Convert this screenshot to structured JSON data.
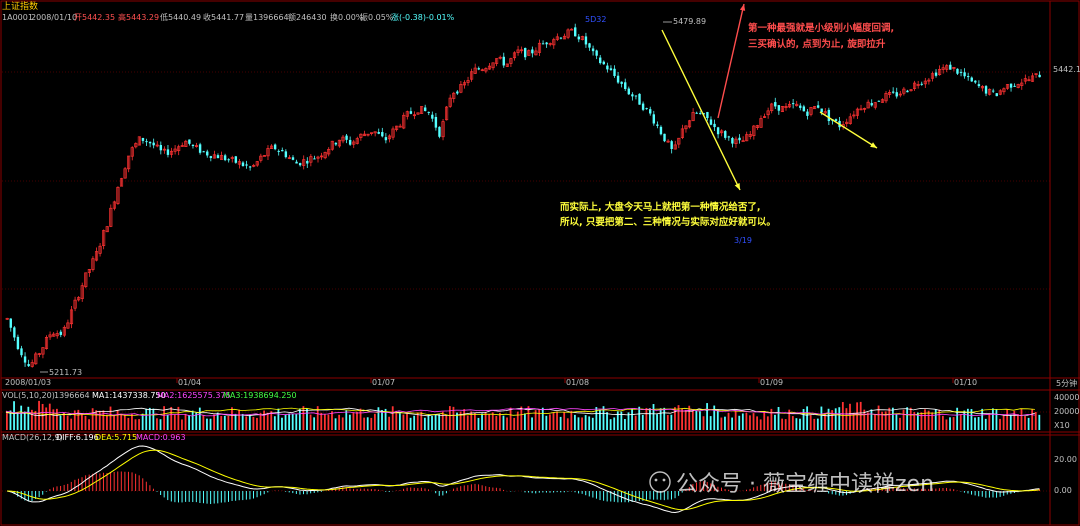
{
  "header": {
    "title": "上证指数",
    "code": "1A0001",
    "date": "2008/01/10",
    "open": "开5442.35",
    "high": "高5443.29",
    "low": "低5440.49",
    "close": "收5441.77",
    "volume": "量1396664",
    "amount": "额246430",
    "turnover": "换0.00%",
    "amplitude": "振0.05%",
    "change": "涨(-0.38)-0.01%"
  },
  "price_labels": {
    "peak": "5479.89",
    "trough": "5211.73",
    "last": "5442.1",
    "peak_marker": "5D32",
    "trough_marker": "3/19"
  },
  "time_axis": {
    "ticks": [
      "2008/01/03",
      "01/04",
      "01/07",
      "01/08",
      "01/09",
      "01/10"
    ],
    "period": "5分钟"
  },
  "volume_panel": {
    "label": "VOL(5,10,20)",
    "value": "1396664",
    "ma1": "MA1:1437338.750",
    "ma2": "MA2:1625575.375",
    "ma3": "MA3:1938694.250",
    "axis": [
      "400000",
      "200000",
      "X10"
    ]
  },
  "macd_panel": {
    "label": "MACD(26,12,9)",
    "diff": "DIFF:6.196",
    "dea": "DEA:5.715",
    "macd": "MACD:0.963",
    "axis": [
      "20.00",
      "0.00"
    ]
  },
  "annotations": {
    "red_note_line1": "第一种最强就是小级别小幅度回调,",
    "red_note_line2": "三买确认的, 点到为止, 旋即拉升",
    "yellow_note_line1": "而实际上, 大盘今天马上就把第一种情况给否了,",
    "yellow_note_line2": "所以, 只要把第二、三种情况与实际对应好就可以。"
  },
  "watermark": "公众号 · 薇宝缠中读禅zen",
  "colors": {
    "up": "#ff3232",
    "down": "#54ffff",
    "grid": "#8b0000",
    "annotation_red": "#ff4d4d",
    "annotation_yellow": "#ffff3c",
    "ma_white": "#ffffff",
    "ma_yellow": "#ffff00"
  },
  "chart_data": {
    "type": "candlestick",
    "interval": "5-minute",
    "x": [
      "2008/01/03",
      "01/04",
      "01/07",
      "01/08",
      "01/09",
      "01/10"
    ],
    "ylim": [
      5205,
      5485
    ],
    "close_path": [
      5250,
      5228,
      5212,
      5225,
      5240,
      5238,
      5260,
      5282,
      5300,
      5325,
      5355,
      5380,
      5392,
      5388,
      5380,
      5383,
      5390,
      5384,
      5380,
      5378,
      5375,
      5372,
      5368,
      5378,
      5385,
      5380,
      5372,
      5375,
      5378,
      5385,
      5392,
      5388,
      5395,
      5398,
      5390,
      5400,
      5410,
      5415,
      5412,
      5395,
      5428,
      5432,
      5445,
      5448,
      5455,
      5450,
      5460,
      5458,
      5465,
      5470,
      5473,
      5476,
      5468,
      5455,
      5448,
      5438,
      5428,
      5420,
      5410,
      5395,
      5380,
      5402,
      5412,
      5408,
      5398,
      5392,
      5388,
      5395,
      5410,
      5418,
      5415,
      5418,
      5412,
      5418,
      5408,
      5402,
      5410,
      5418,
      5420,
      5425,
      5426,
      5430,
      5436,
      5440,
      5446,
      5448,
      5442,
      5435,
      5430,
      5426,
      5433,
      5436,
      5438,
      5442
    ],
    "key_levels": {
      "high": 5479.89,
      "low": 5211.73,
      "last": 5442.1
    }
  }
}
